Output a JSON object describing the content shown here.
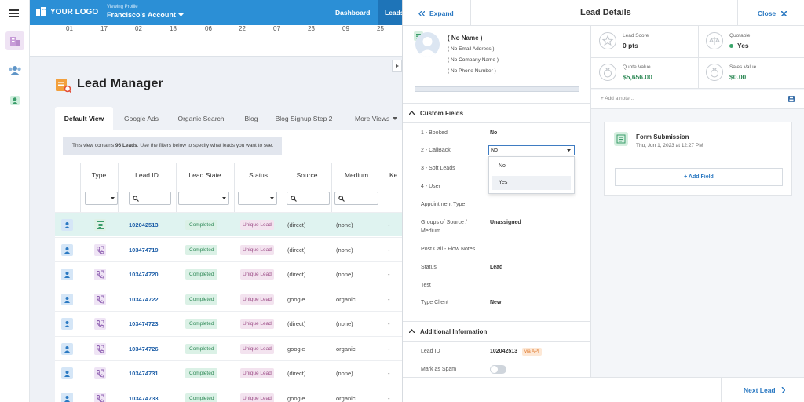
{
  "topnav": {
    "logo": "YOUR LOGO",
    "viewing_label": "Viewing Profile",
    "account": "Francisco's Account",
    "links": [
      "Dashboard",
      "Leads"
    ]
  },
  "chart_axis_ticks": [
    "01",
    "17",
    "02",
    "18",
    "06",
    "22",
    "07",
    "23",
    "09",
    "25"
  ],
  "lead_manager": {
    "title": "Lead Manager",
    "tabs": [
      "Default View",
      "Google Ads",
      "Organic Search",
      "Blog",
      "Blog Signup Step 2",
      "More Views"
    ],
    "notice_prefix": "This view contains ",
    "notice_count": "96 Leads",
    "notice_suffix": ". Use the filters below to specify what leads you want to see.",
    "columns": [
      "Type",
      "Lead ID",
      "Lead State",
      "Status",
      "Source",
      "Medium",
      "Ke"
    ],
    "rows": [
      {
        "type": "form",
        "id": "102042513",
        "state": "Completed",
        "status": "Unique Lead",
        "source": "(direct)",
        "medium": "(none)",
        "ke": "-"
      },
      {
        "type": "call",
        "id": "103474719",
        "state": "Completed",
        "status": "Unique Lead",
        "source": "(direct)",
        "medium": "(none)",
        "ke": "-"
      },
      {
        "type": "call",
        "id": "103474720",
        "state": "Completed",
        "status": "Unique Lead",
        "source": "(direct)",
        "medium": "(none)",
        "ke": "-"
      },
      {
        "type": "call",
        "id": "103474722",
        "state": "Completed",
        "status": "Unique Lead",
        "source": "google",
        "medium": "organic",
        "ke": "-"
      },
      {
        "type": "call",
        "id": "103474723",
        "state": "Completed",
        "status": "Unique Lead",
        "source": "(direct)",
        "medium": "(none)",
        "ke": "-"
      },
      {
        "type": "call",
        "id": "103474726",
        "state": "Completed",
        "status": "Unique Lead",
        "source": "google",
        "medium": "organic",
        "ke": "-"
      },
      {
        "type": "call",
        "id": "103474731",
        "state": "Completed",
        "status": "Unique Lead",
        "source": "(direct)",
        "medium": "(none)",
        "ke": "-"
      },
      {
        "type": "call",
        "id": "103474733",
        "state": "Completed",
        "status": "Unique Lead",
        "source": "google",
        "medium": "organic",
        "ke": "-"
      }
    ]
  },
  "panel": {
    "expand": "Expand",
    "title": "Lead Details",
    "close": "Close",
    "next": "Next Lead",
    "contact": {
      "name": "( No Name )",
      "email": "( No Email Address )",
      "company": "( No Company Name )",
      "phone": "( No Phone Number )"
    },
    "custom_fields_title": "Custom Fields",
    "fields": [
      {
        "label": "1 - Booked",
        "value": "No"
      },
      {
        "label": "2 - CallBack",
        "value": "No"
      },
      {
        "label": "3 - Soft Leads",
        "value": ""
      },
      {
        "label": "4 - User",
        "value": ""
      },
      {
        "label": "Appointment Type",
        "value": ""
      },
      {
        "label1": "Groups of Source /",
        "label2": "Medium",
        "value": "Unassigned"
      },
      {
        "label": "Post Call - Flow Notes",
        "value": ""
      },
      {
        "label": "Status",
        "value": "Lead"
      },
      {
        "label": "Test",
        "value": ""
      },
      {
        "label": "Type Client",
        "value": "New"
      }
    ],
    "dropdown_options": [
      "No",
      "Yes"
    ],
    "additional_title": "Additional Information",
    "lead_id_label": "Lead ID",
    "lead_id_value": "102042513",
    "via": "via API",
    "spam_label": "Mark as Spam",
    "stats": {
      "score_label": "Lead Score",
      "score_value": "0 pts",
      "quotable_label": "Quotable",
      "quotable_value": "Yes",
      "quote_label": "Quote Value",
      "quote_value": "$5,656.00",
      "sales_label": "Sales Value",
      "sales_value": "$0.00"
    },
    "note_placeholder": "+ Add a note...",
    "form": {
      "title": "Form Submission",
      "date": "Thu, Jun 1, 2023 at 12:27 PM",
      "add_field": "+ Add Field"
    }
  },
  "colors": {
    "nav": "#2b8fd6",
    "accent": "#2b79c2",
    "completed": "#2f8a57",
    "unique": "#9b4b86",
    "money": "#2f8a57"
  }
}
